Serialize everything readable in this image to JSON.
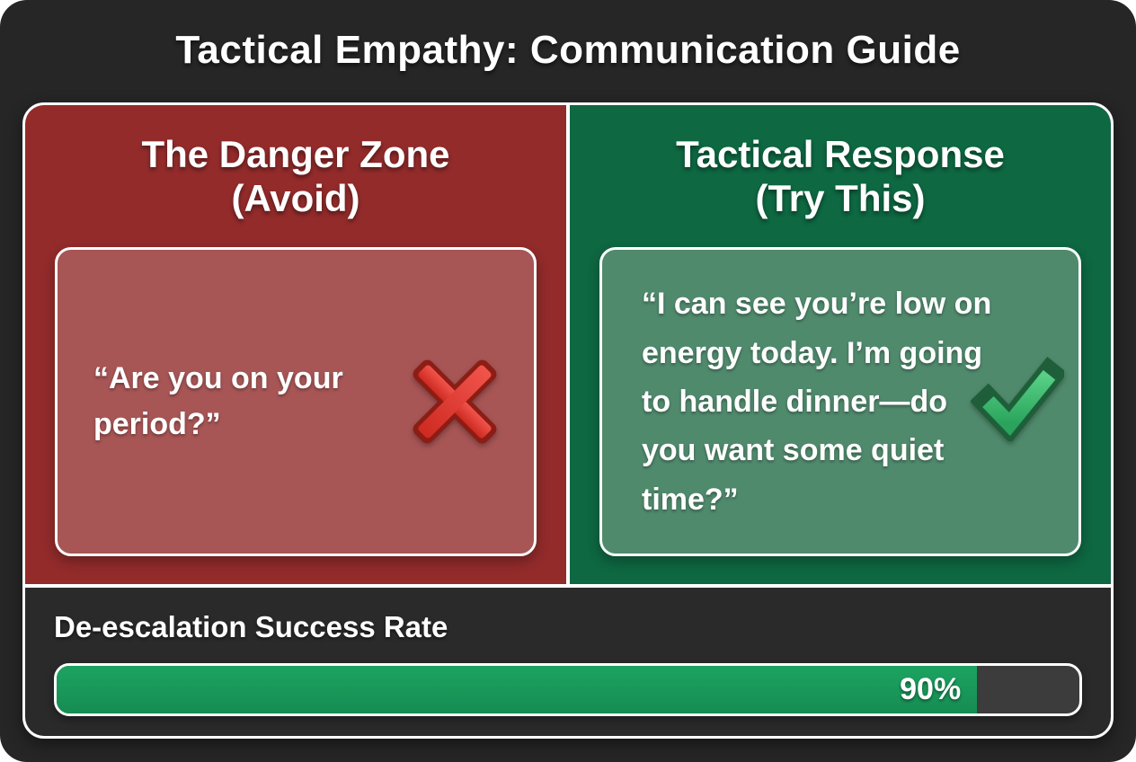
{
  "title": "Tactical Empathy: Communication Guide",
  "panels": {
    "danger": {
      "heading_line1": "The Danger Zone",
      "heading_line2": "(Avoid)",
      "quote": "“Are you on your period?”",
      "icon": "cross-mark-icon"
    },
    "tactical": {
      "heading_line1": "Tactical Response",
      "heading_line2": "(Try This)",
      "quote": "“I can see you’re low on energy today. I’m going to handle dinner—do you want some quiet time?”",
      "icon": "check-mark-icon"
    }
  },
  "success_meter": {
    "label": "De-escalation Success Rate",
    "percent": 90,
    "value_label": "90%"
  },
  "colors": {
    "card_background": "#262626",
    "danger_panel": "#932b2b",
    "danger_card": "#a75555",
    "tactical_panel": "#0e6842",
    "tactical_card": "#508a6d",
    "progress_fill": "#1a9a5c",
    "progress_track": "#3c3c3c",
    "text": "#ffffff"
  }
}
